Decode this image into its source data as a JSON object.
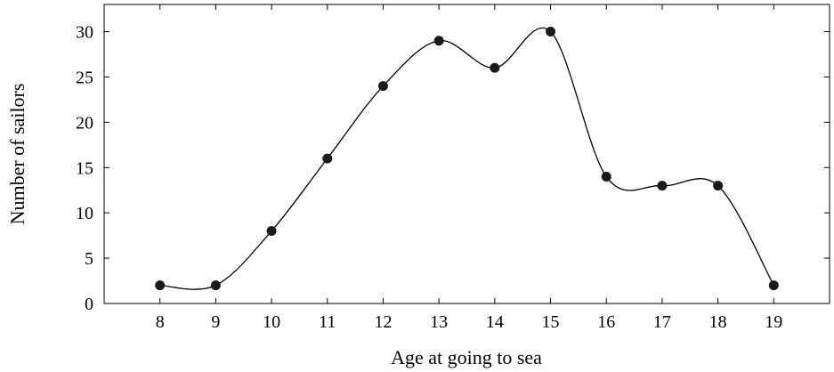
{
  "chart_data": {
    "type": "line",
    "title": "",
    "xlabel": "Age at going to sea",
    "ylabel": "Number of sailors",
    "x": [
      8,
      9,
      10,
      11,
      12,
      13,
      14,
      15,
      16,
      17,
      18,
      19
    ],
    "series": [
      {
        "values": [
          2,
          2,
          8,
          16,
          24,
          29,
          26,
          30,
          14,
          13,
          13,
          2
        ]
      }
    ],
    "xlim": [
      7,
      20
    ],
    "ylim": [
      0,
      33
    ],
    "xticks": [
      8,
      9,
      10,
      11,
      12,
      13,
      14,
      15,
      16,
      17,
      18,
      19
    ],
    "yticks": [
      0,
      5,
      10,
      15,
      20,
      25,
      30
    ],
    "smooth": true,
    "marker": "circle",
    "grid": false,
    "legend": "none",
    "colors": {
      "line": "#000000",
      "marker": "#1a1a1a",
      "frame": "#000000"
    }
  }
}
